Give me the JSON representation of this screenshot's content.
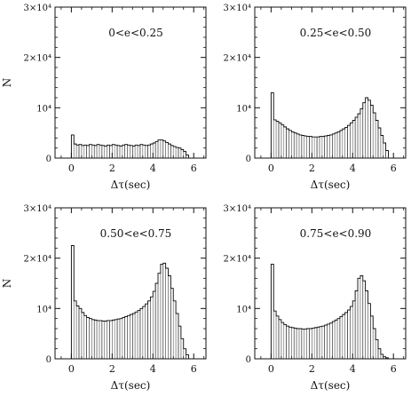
{
  "figure": {
    "ylabel": "N",
    "xlabel": "Δτ(sec)"
  },
  "chart_data": [
    {
      "type": "bar",
      "title": "0<e<0.25",
      "xlabel": "Δτ(sec)",
      "ylabel": "N",
      "xlim": [
        -0.8,
        6.6
      ],
      "ylim": [
        0,
        30000
      ],
      "xticks": [
        "0",
        "2",
        "4",
        "6"
      ],
      "yticks": [
        "0",
        "10⁴",
        "2×10⁴",
        "3×10⁴"
      ],
      "bin_width": 0.125,
      "values": [
        4600,
        2800,
        2600,
        2700,
        2500,
        2600,
        2500,
        2700,
        2600,
        2500,
        2700,
        2600,
        2500,
        2400,
        2600,
        2500,
        2700,
        2600,
        2500,
        2400,
        2600,
        2700,
        2600,
        2500,
        2400,
        2600,
        2500,
        2700,
        2600,
        2500,
        2600,
        2800,
        3000,
        3300,
        3600,
        3600,
        3400,
        3100,
        2800,
        2500,
        2300,
        2100,
        2000,
        1700,
        1300,
        600
      ]
    },
    {
      "type": "bar",
      "title": "0.25<e<0.50",
      "xlabel": "Δτ(sec)",
      "ylabel": "",
      "xlim": [
        -0.8,
        6.6
      ],
      "ylim": [
        0,
        30000
      ],
      "xticks": [
        "0",
        "2",
        "4",
        "6"
      ],
      "yticks": [
        "0",
        "10⁴",
        "2×10⁴",
        "3×10⁴"
      ],
      "bin_width": 0.125,
      "values": [
        13000,
        7600,
        7300,
        7000,
        6600,
        6200,
        5800,
        5500,
        5200,
        5000,
        4800,
        4600,
        4500,
        4400,
        4300,
        4300,
        4200,
        4200,
        4200,
        4300,
        4300,
        4400,
        4500,
        4600,
        4800,
        5000,
        5200,
        5500,
        5800,
        6100,
        6500,
        7000,
        7500,
        8100,
        8800,
        9800,
        11000,
        12000,
        11500,
        10500,
        9000,
        7500,
        6000,
        4500,
        3000,
        1500
      ]
    },
    {
      "type": "bar",
      "title": "0.50<e<0.75",
      "xlabel": "Δτ(sec)",
      "ylabel": "N",
      "xlim": [
        -0.8,
        6.6
      ],
      "ylim": [
        0,
        30000
      ],
      "xticks": [
        "0",
        "2",
        "4",
        "6"
      ],
      "yticks": [
        "0",
        "10⁴",
        "2×10⁴",
        "3×10⁴"
      ],
      "bin_width": 0.125,
      "values": [
        22500,
        11500,
        10500,
        10000,
        9200,
        8600,
        8200,
        8000,
        7800,
        7700,
        7600,
        7600,
        7500,
        7500,
        7600,
        7600,
        7700,
        7800,
        7900,
        8000,
        8200,
        8400,
        8600,
        8800,
        9000,
        9300,
        9600,
        10000,
        10400,
        10900,
        11500,
        12300,
        13400,
        15000,
        17000,
        18800,
        19000,
        18000,
        16500,
        14000,
        11500,
        9000,
        6500,
        4000,
        2000,
        800
      ]
    },
    {
      "type": "bar",
      "title": "0.75<e<0.90",
      "xlabel": "Δτ(sec)",
      "ylabel": "",
      "xlim": [
        -0.8,
        6.6
      ],
      "ylim": [
        0,
        30000
      ],
      "xticks": [
        "0",
        "2",
        "4",
        "6"
      ],
      "yticks": [
        "0",
        "10⁴",
        "2×10⁴",
        "3×10⁴"
      ],
      "bin_width": 0.125,
      "values": [
        18800,
        9500,
        8500,
        7800,
        7200,
        6800,
        6500,
        6300,
        6200,
        6100,
        6000,
        6000,
        5900,
        5900,
        6000,
        6000,
        6100,
        6200,
        6300,
        6400,
        6500,
        6700,
        6900,
        7100,
        7400,
        7700,
        8000,
        8400,
        8800,
        9200,
        9700,
        10400,
        11500,
        13500,
        16000,
        16500,
        15500,
        13500,
        11000,
        8500,
        6000,
        3800,
        2000,
        900,
        400,
        200
      ]
    }
  ]
}
